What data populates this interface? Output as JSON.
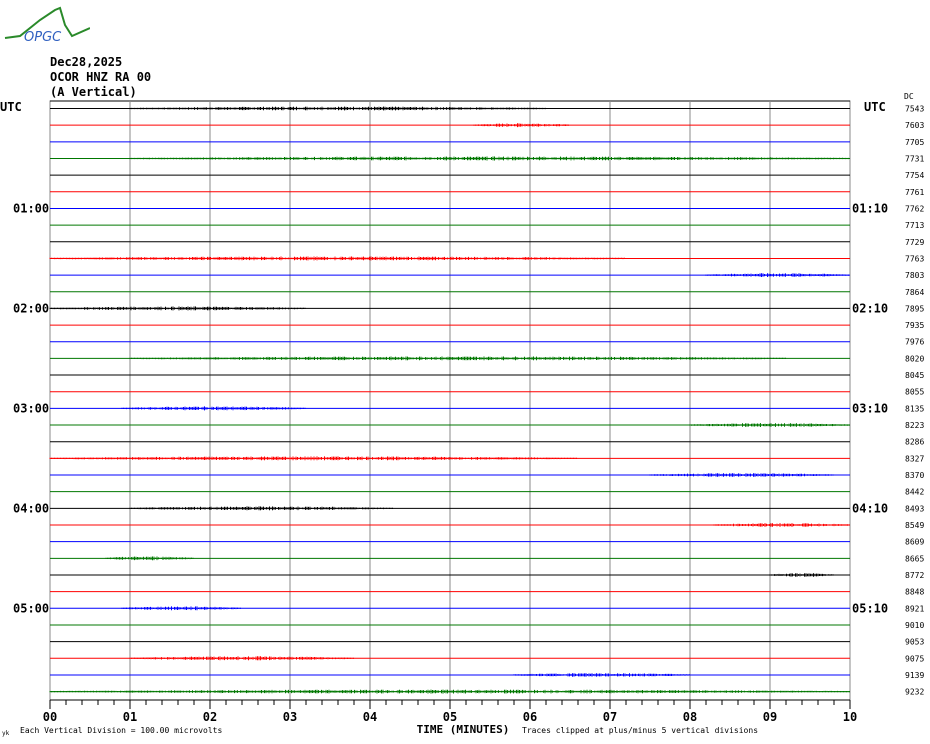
{
  "logo_text": "OPGC",
  "header": {
    "date": "Dec28,2025",
    "station": "OCOR HNZ RA 00",
    "component": "(A Vertical)"
  },
  "chart_data": {
    "type": "line",
    "subtype": "helicorder",
    "xlabel": "TIME (MINUTES)",
    "xlim": [
      0,
      10
    ],
    "x_ticks": [
      "00",
      "01",
      "02",
      "03",
      "04",
      "05",
      "06",
      "07",
      "08",
      "09",
      "10"
    ],
    "left_axis_title": "UTC",
    "right_axis_title": "UTC",
    "right_column_title": "DC",
    "left_hour_labels": [
      {
        "trace": 6,
        "label": "01:00"
      },
      {
        "trace": 12,
        "label": "02:00"
      },
      {
        "trace": 18,
        "label": "03:00"
      },
      {
        "trace": 24,
        "label": "04:00"
      },
      {
        "trace": 30,
        "label": "05:00"
      }
    ],
    "right_hour_labels": [
      {
        "trace": 6,
        "label": "01:10"
      },
      {
        "trace": 12,
        "label": "02:10"
      },
      {
        "trace": 18,
        "label": "03:10"
      },
      {
        "trace": 24,
        "label": "04:10"
      },
      {
        "trace": 30,
        "label": "05:10"
      }
    ],
    "trace_colors": [
      "#000000",
      "#ff0000",
      "#0000ff",
      "#007700"
    ],
    "dc_offsets": [
      "7543",
      "7603",
      "7705",
      "7731",
      "7754",
      "7761",
      "7762",
      "7713",
      "7729",
      "7763",
      "7803",
      "7864",
      "7895",
      "7935",
      "7976",
      "8020",
      "8045",
      "8055",
      "8135",
      "8223",
      "8286",
      "8327",
      "8370",
      "8442",
      "8493",
      "8549",
      "8609",
      "8665",
      "8772",
      "8848",
      "8921",
      "9010",
      "9053",
      "9075",
      "9139",
      "9232"
    ],
    "activity": [
      {
        "trace": 0,
        "from": 1.0,
        "to": 6.2
      },
      {
        "trace": 1,
        "from": 5.3,
        "to": 6.5
      },
      {
        "trace": 3,
        "from": 1.0,
        "to": 10
      },
      {
        "trace": 9,
        "from": 0,
        "to": 7.2
      },
      {
        "trace": 10,
        "from": 8.2,
        "to": 10
      },
      {
        "trace": 12,
        "from": 0,
        "to": 3.2
      },
      {
        "trace": 15,
        "from": 1.0,
        "to": 9.2
      },
      {
        "trace": 18,
        "from": 0.9,
        "to": 3.2
      },
      {
        "trace": 19,
        "from": 8.0,
        "to": 10
      },
      {
        "trace": 21,
        "from": 0,
        "to": 6.6
      },
      {
        "trace": 22,
        "from": 7.5,
        "to": 9.8
      },
      {
        "trace": 24,
        "from": 1.0,
        "to": 4.3
      },
      {
        "trace": 25,
        "from": 8.3,
        "to": 10
      },
      {
        "trace": 27,
        "from": 0.7,
        "to": 1.8
      },
      {
        "trace": 28,
        "from": 9.0,
        "to": 9.8
      },
      {
        "trace": 30,
        "from": 0.9,
        "to": 2.4
      },
      {
        "trace": 33,
        "from": 1.0,
        "to": 3.8
      },
      {
        "trace": 34,
        "from": 5.8,
        "to": 8.0
      },
      {
        "trace": 35,
        "from": 0,
        "to": 10
      }
    ]
  },
  "footer": {
    "scale_note": "Each Vertical Division =  100.00 microvolts",
    "clip_note": "Traces clipped at plus/minus 5 vertical divisions",
    "corner_mark": "yk"
  }
}
